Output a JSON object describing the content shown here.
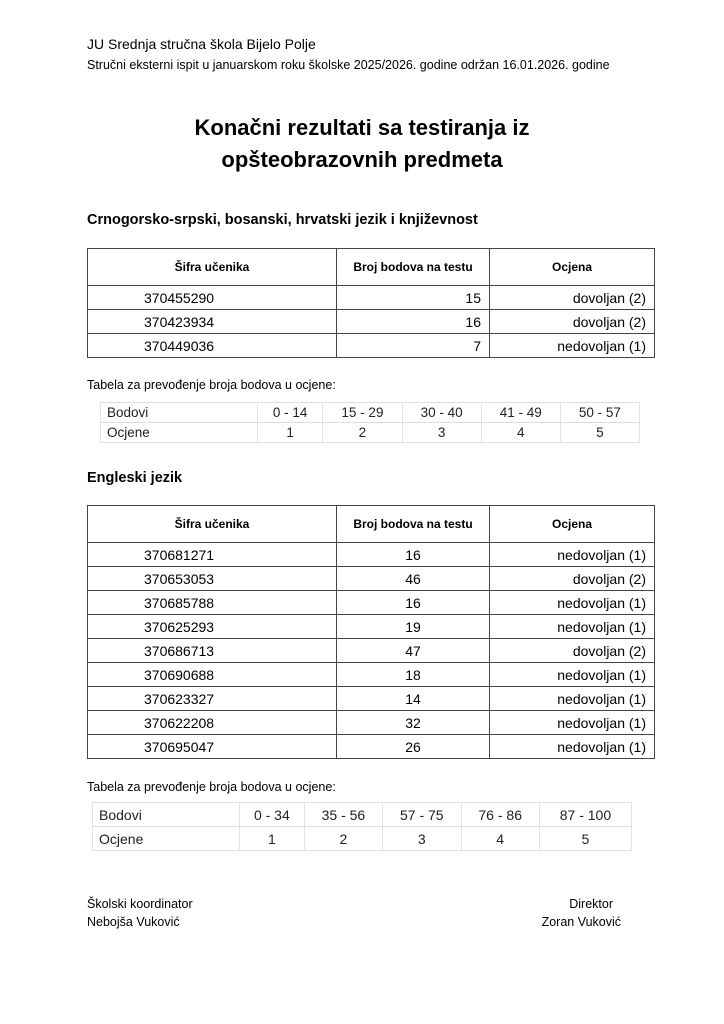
{
  "header": {
    "school": "JU Srednja stručna škola Bijelo Polje",
    "subtitle": "Stručni eksterni ispit u januarskom roku školske 2025/2026. godine održan 16.01.2026. godine"
  },
  "title": {
    "line1": "Konačni rezultati sa testiranja iz",
    "line2": "opšteobrazovnih predmeta"
  },
  "sections": [
    {
      "subject": "Crnogorsko-srpski, bosanski, hrvatski jezik i književnost",
      "columns": [
        "Šifra učenika",
        "Broj bodova na testu",
        "Ocjena"
      ],
      "rows": [
        {
          "id": "370455290",
          "points": "15",
          "grade": "dovoljan (2)"
        },
        {
          "id": "370423934",
          "points": "16",
          "grade": "dovoljan (2)"
        },
        {
          "id": "370449036",
          "points": "7",
          "grade": "nedovoljan (1)"
        }
      ],
      "conversion_note": "Tabela za prevođenje broja bodova u ocjene:",
      "conversion": {
        "row_labels": [
          "Bodovi",
          "Ocjene"
        ],
        "ranges": [
          "0 - 14",
          "15 - 29",
          "30 - 40",
          "41 - 49",
          "50 - 57"
        ],
        "grades": [
          "1",
          "2",
          "3",
          "4",
          "5"
        ]
      }
    },
    {
      "subject": "Engleski jezik",
      "columns": [
        "Šifra učenika",
        "Broj bodova na testu",
        "Ocjena"
      ],
      "rows": [
        {
          "id": "370681271",
          "points": "16",
          "grade": "nedovoljan (1)"
        },
        {
          "id": "370653053",
          "points": "46",
          "grade": "dovoljan (2)"
        },
        {
          "id": "370685788",
          "points": "16",
          "grade": "nedovoljan (1)"
        },
        {
          "id": "370625293",
          "points": "19",
          "grade": "nedovoljan (1)"
        },
        {
          "id": "370686713",
          "points": "47",
          "grade": "dovoljan (2)"
        },
        {
          "id": "370690688",
          "points": "18",
          "grade": "nedovoljan (1)"
        },
        {
          "id": "370623327",
          "points": "14",
          "grade": "nedovoljan (1)"
        },
        {
          "id": "370622208",
          "points": "32",
          "grade": "nedovoljan (1)"
        },
        {
          "id": "370695047",
          "points": "26",
          "grade": "nedovoljan (1)"
        }
      ],
      "conversion_note": "Tabela za prevođenje broja bodova u ocjene:",
      "conversion": {
        "row_labels": [
          "Bodovi",
          "Ocjene"
        ],
        "ranges": [
          "0 - 34",
          "35 - 56",
          "57 - 75",
          "76 - 86",
          "87 - 100"
        ],
        "grades": [
          "1",
          "2",
          "3",
          "4",
          "5"
        ]
      }
    }
  ],
  "signatures": {
    "left_role": "Školski koordinator",
    "left_name": "Nebojša Vuković",
    "right_role": "Direktor",
    "right_name": "Zoran Vuković"
  }
}
